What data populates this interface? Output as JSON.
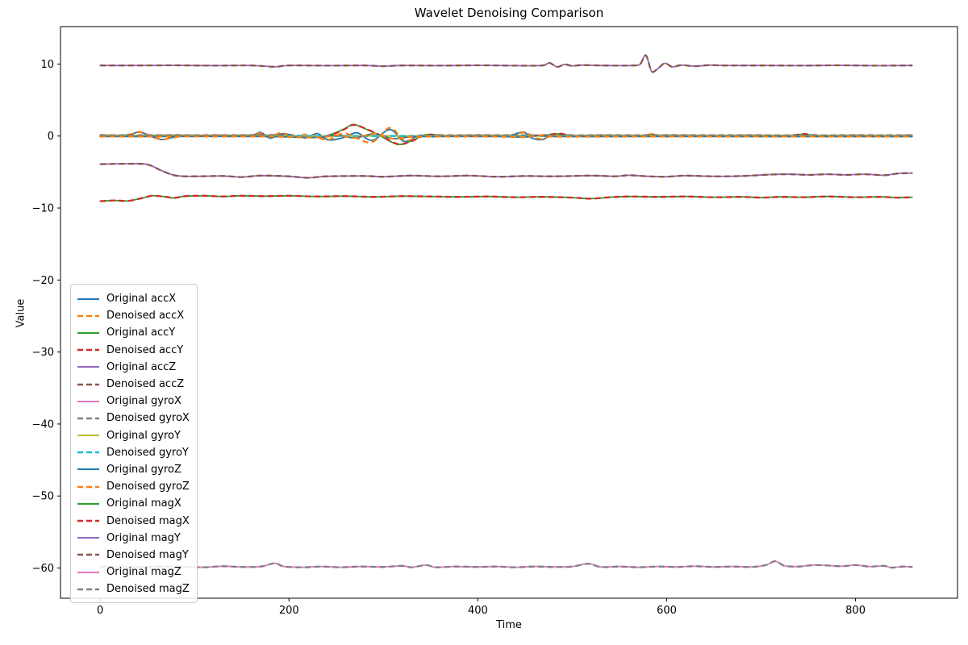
{
  "title": "Wavelet Denoising Comparison",
  "chart_data": {
    "type": "line",
    "title": "Wavelet Denoising Comparison",
    "xlabel": "Time",
    "ylabel": "Value",
    "xlim": [
      -42,
      908
    ],
    "ylim": [
      -64.2,
      15.2
    ],
    "grid": false,
    "legend_position": "center left",
    "xticks": {
      "values": [
        0,
        200,
        400,
        600,
        800
      ],
      "labels": [
        "0",
        "200",
        "400",
        "600",
        "800"
      ]
    },
    "yticks": {
      "values": [
        10,
        0,
        -10,
        -20,
        -30,
        -40,
        -50,
        -60
      ],
      "labels": [
        "10",
        "0",
        "−10",
        "−20",
        "−30",
        "−40",
        "−50",
        "−60"
      ]
    },
    "line_style": {
      "original": "solid",
      "denoised": "dashed"
    },
    "channels": [
      {
        "name": "accX",
        "label_original": "Original accX",
        "label_denoised": "Denoised accX",
        "color_original": "#1f77b4",
        "color_denoised": "#ff7f0e",
        "x": [
          0,
          20,
          35,
          42,
          52,
          65,
          78,
          90,
          110,
          125,
          140,
          160,
          170,
          180,
          192,
          205,
          218,
          230,
          242,
          258,
          272,
          288,
          307,
          322,
          338,
          352,
          370,
          400,
          430,
          448,
          456,
          468,
          480,
          495,
          520,
          550,
          575,
          585,
          595,
          620,
          700,
          780,
          860
        ],
        "y_original": [
          0,
          -0.02,
          0.35,
          0.6,
          0.05,
          -0.5,
          -0.15,
          0.02,
          0.03,
          0.1,
          -0.02,
          0.05,
          0.5,
          -0.3,
          0.3,
          0.1,
          -0.25,
          0.35,
          -0.55,
          -0.2,
          0.45,
          -0.6,
          0.9,
          -0.75,
          0.1,
          -0.1,
          0.02,
          -0.02,
          0,
          0.55,
          -0.2,
          -0.5,
          0.25,
          0,
          0.02,
          -0.02,
          0.08,
          0.25,
          -0.08,
          0.02,
          0,
          -0.02,
          -0.05
        ],
        "y_denoised": [
          0,
          -0.05,
          0.3,
          0.55,
          0.1,
          -0.45,
          -0.2,
          0.05,
          0,
          0.15,
          -0.05,
          0.1,
          0.35,
          -0.1,
          0.45,
          -0.15,
          0.2,
          -0.2,
          -0.5,
          0.4,
          -0.3,
          -0.85,
          1.15,
          -0.6,
          -0.15,
          0.1,
          -0.05,
          0,
          -0.05,
          0.5,
          0.15,
          -0.45,
          0.2,
          -0.05,
          0,
          -0.05,
          0.05,
          0.3,
          -0.05,
          0,
          -0.05,
          -0.05,
          -0.05
        ]
      },
      {
        "name": "accY",
        "label_original": "Original accY",
        "label_denoised": "Denoised accY",
        "color_original": "#2ca02c",
        "color_denoised": "#d62728",
        "x": [
          0,
          40,
          80,
          120,
          160,
          200,
          230,
          245,
          258,
          268,
          280,
          295,
          315,
          330,
          345,
          365,
          400,
          440,
          470,
          485,
          500,
          530,
          570,
          610,
          650,
          690,
          730,
          745,
          760,
          800,
          830,
          860
        ],
        "y_original": [
          0.14,
          0.08,
          0.13,
          0.09,
          0.13,
          0.08,
          -0.15,
          0.25,
          0.95,
          1.6,
          1.05,
          0.15,
          -1.15,
          -0.65,
          0.18,
          0.08,
          0.13,
          0.09,
          0.13,
          0.3,
          0.09,
          0.13,
          0.09,
          0.13,
          0.09,
          0.13,
          0.09,
          0.25,
          0.09,
          0.13,
          0.09,
          0.12
        ],
        "y_denoised": [
          0.12,
          0.1,
          0.12,
          0.1,
          0.12,
          0.1,
          -0.1,
          0.2,
          0.9,
          1.55,
          1.1,
          0.2,
          -1.1,
          -0.7,
          0.15,
          0.1,
          0.12,
          0.1,
          0.12,
          0.35,
          0.1,
          0.12,
          0.1,
          0.12,
          0.1,
          0.12,
          0.1,
          0.28,
          0.1,
          0.12,
          0.1,
          0.12
        ]
      },
      {
        "name": "accZ",
        "label_original": "Original accZ",
        "label_denoised": "Denoised accZ",
        "color_original": "#9467bd",
        "color_denoised": "#8c564b",
        "x": [
          0,
          40,
          80,
          120,
          160,
          185,
          200,
          240,
          280,
          300,
          320,
          360,
          400,
          440,
          468,
          476,
          484,
          492,
          500,
          510,
          530,
          550,
          565,
          572,
          578,
          584,
          590,
          598,
          606,
          615,
          630,
          645,
          660,
          700,
          740,
          780,
          820,
          860
        ],
        "y_denoised": [
          9.8,
          9.8,
          9.82,
          9.78,
          9.8,
          9.62,
          9.8,
          9.78,
          9.8,
          9.7,
          9.8,
          9.78,
          9.82,
          9.78,
          9.8,
          10.15,
          9.6,
          9.95,
          9.75,
          9.85,
          9.8,
          9.78,
          9.8,
          10.0,
          11.2,
          9.0,
          9.3,
          10.1,
          9.6,
          9.85,
          9.7,
          9.85,
          9.8,
          9.8,
          9.78,
          9.82,
          9.78,
          9.8
        ]
      },
      {
        "name": "gyroX",
        "label_original": "Original gyroX",
        "label_denoised": "Denoised gyroX",
        "color_original": "#e377c2",
        "color_denoised": "#7f7f7f",
        "x": [
          0,
          200,
          400,
          600,
          860
        ],
        "y_denoised": [
          0.02,
          0.02,
          0.02,
          0.02,
          0.02
        ]
      },
      {
        "name": "gyroY",
        "label_original": "Original gyroY",
        "label_denoised": "Denoised gyroY",
        "color_original": "#bcbd22",
        "color_denoised": "#17becf",
        "x": [
          0,
          200,
          400,
          600,
          860
        ],
        "y_denoised": [
          0,
          0,
          0,
          0,
          0
        ]
      },
      {
        "name": "gyroZ",
        "label_original": "Original gyroZ",
        "label_denoised": "Denoised gyroZ",
        "color_original": "#1f77b4",
        "color_denoised": "#ff7f0e",
        "x": [
          0,
          60,
          120,
          180,
          230,
          250,
          270,
          290,
          310,
          330,
          360,
          420,
          450,
          465,
          480,
          540,
          600,
          700,
          860
        ],
        "y_denoised": [
          -0.07,
          -0.07,
          -0.05,
          -0.08,
          -0.2,
          0.1,
          -0.25,
          0.3,
          -0.35,
          -0.1,
          -0.07,
          -0.07,
          -0.15,
          0.1,
          -0.07,
          -0.07,
          -0.07,
          -0.07,
          -0.07
        ]
      },
      {
        "name": "magX",
        "label_original": "Original magX",
        "label_denoised": "Denoised magX",
        "color_original": "#2ca02c",
        "color_denoised": "#d62728",
        "x": [
          0,
          15,
          30,
          45,
          55,
          70,
          78,
          90,
          110,
          130,
          150,
          175,
          200,
          230,
          260,
          290,
          320,
          350,
          380,
          410,
          440,
          470,
          500,
          520,
          540,
          560,
          590,
          620,
          650,
          680,
          700,
          720,
          745,
          770,
          800,
          825,
          845,
          860
        ],
        "y_denoised": [
          -9.05,
          -8.95,
          -9.0,
          -8.6,
          -8.3,
          -8.45,
          -8.6,
          -8.35,
          -8.3,
          -8.4,
          -8.3,
          -8.35,
          -8.3,
          -8.4,
          -8.35,
          -8.45,
          -8.35,
          -8.4,
          -8.45,
          -8.4,
          -8.5,
          -8.45,
          -8.55,
          -8.7,
          -8.5,
          -8.4,
          -8.45,
          -8.4,
          -8.5,
          -8.45,
          -8.55,
          -8.45,
          -8.5,
          -8.4,
          -8.5,
          -8.45,
          -8.55,
          -8.5
        ]
      },
      {
        "name": "magY",
        "label_original": "Original magY",
        "label_denoised": "Denoised magY",
        "color_original": "#9467bd",
        "color_denoised": "#8c564b",
        "x": [
          0,
          30,
          50,
          65,
          80,
          100,
          130,
          150,
          170,
          200,
          220,
          240,
          280,
          300,
          330,
          360,
          390,
          420,
          450,
          480,
          520,
          545,
          560,
          580,
          600,
          620,
          650,
          680,
          710,
          730,
          750,
          770,
          790,
          810,
          830,
          845,
          860
        ],
        "y_denoised": [
          -3.9,
          -3.85,
          -3.95,
          -4.8,
          -5.5,
          -5.6,
          -5.55,
          -5.7,
          -5.5,
          -5.6,
          -5.8,
          -5.6,
          -5.55,
          -5.65,
          -5.5,
          -5.6,
          -5.5,
          -5.65,
          -5.55,
          -5.6,
          -5.5,
          -5.6,
          -5.45,
          -5.6,
          -5.65,
          -5.5,
          -5.6,
          -5.55,
          -5.35,
          -5.3,
          -5.4,
          -5.3,
          -5.4,
          -5.3,
          -5.45,
          -5.2,
          -5.15
        ]
      },
      {
        "name": "magZ",
        "label_original": "Original magZ",
        "label_denoised": "Denoised magZ",
        "color_original": "#e377c2",
        "color_denoised": "#7f7f7f",
        "x": [
          0,
          40,
          80,
          110,
          130,
          150,
          170,
          185,
          195,
          215,
          235,
          255,
          275,
          300,
          320,
          330,
          345,
          355,
          375,
          400,
          420,
          440,
          460,
          480,
          500,
          517,
          530,
          550,
          570,
          590,
          610,
          630,
          650,
          670,
          690,
          705,
          715,
          725,
          740,
          755,
          770,
          785,
          800,
          815,
          830,
          838,
          850,
          860
        ],
        "y_denoised": [
          -59.8,
          -59.85,
          -59.8,
          -59.9,
          -59.75,
          -59.85,
          -59.8,
          -59.35,
          -59.8,
          -59.9,
          -59.8,
          -59.9,
          -59.8,
          -59.85,
          -59.7,
          -59.9,
          -59.6,
          -59.9,
          -59.8,
          -59.85,
          -59.8,
          -59.9,
          -59.8,
          -59.85,
          -59.8,
          -59.4,
          -59.85,
          -59.8,
          -59.9,
          -59.8,
          -59.85,
          -59.75,
          -59.85,
          -59.8,
          -59.85,
          -59.6,
          -59.05,
          -59.7,
          -59.8,
          -59.6,
          -59.65,
          -59.75,
          -59.6,
          -59.8,
          -59.7,
          -59.95,
          -59.8,
          -59.85
        ]
      }
    ]
  }
}
